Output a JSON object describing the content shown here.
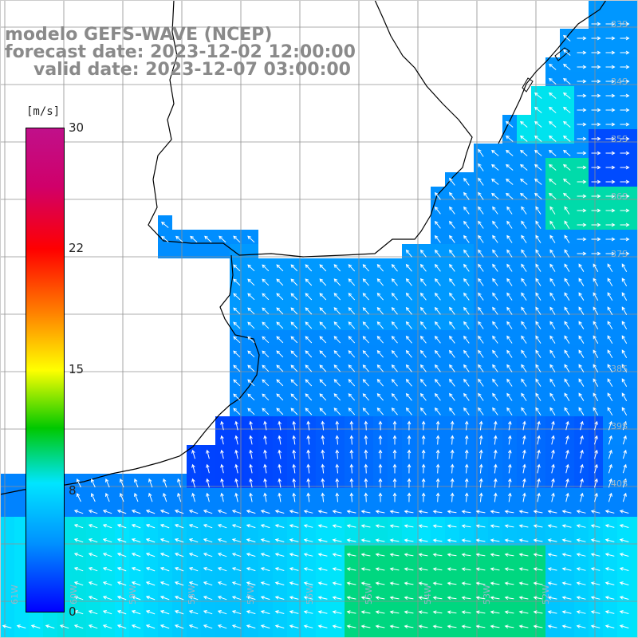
{
  "title": {
    "line1": "modelo GEFS-WAVE (NCEP)",
    "line2": "forecast date: 2023-12-02 12:00:00",
    "line3": "valid date: 2023-12-07 03:00:00"
  },
  "colorbar": {
    "unit": "[m/s]",
    "ticks": [
      {
        "label": "30",
        "value": 30
      },
      {
        "label": "22",
        "value": 22
      },
      {
        "label": "15",
        "value": 15
      },
      {
        "label": "8",
        "value": 8
      },
      {
        "label": "0",
        "value": 0
      }
    ],
    "range": [
      0,
      30
    ],
    "colors": [
      "#0000ff",
      "#0090ff",
      "#00e5ff",
      "#00c800",
      "#ffff00",
      "#ff7f00",
      "#ff0000",
      "#c0108a"
    ]
  },
  "lat_labels": [
    "33S",
    "34S",
    "35S",
    "36S",
    "37S",
    "38S",
    "39S",
    "40S"
  ],
  "lon_labels": [
    "61W",
    "60W",
    "59W",
    "58W",
    "57W",
    "56W",
    "55W",
    "54W",
    "53W",
    "52W"
  ],
  "legend_colors": {
    "background": "#ffffff",
    "grid": "#909090",
    "coast": "#000000",
    "arrow": "#ffffff",
    "title": "#8a8a8a"
  }
}
